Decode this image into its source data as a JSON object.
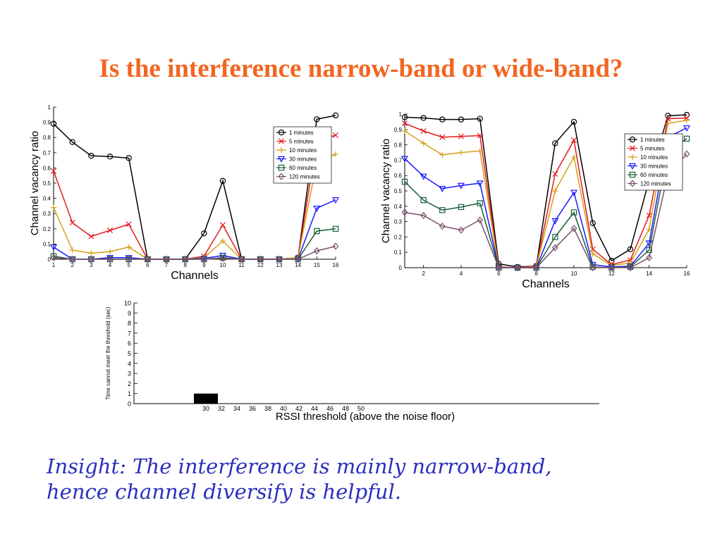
{
  "slide": {
    "title": "Is the interference narrow-band or wide-band?",
    "insight_line1": "Insight: The interference is mainly narrow-band,",
    "insight_line2": "hence channel diversify is helpful."
  },
  "colors": {
    "title": "#f26522",
    "insight": "#2b2fbd",
    "series": [
      "#000000",
      "#e31a1c",
      "#d4a017",
      "#1a1aff",
      "#1b5e3b",
      "#7b4f6e"
    ]
  },
  "chart_data": [
    {
      "type": "line",
      "xlabel": "Channels",
      "ylabel": "Channel vacancy ratio",
      "xlim": [
        1,
        16
      ],
      "ylim": [
        0,
        1
      ],
      "xticks": [
        "1",
        "2",
        "3",
        "4",
        "5",
        "6",
        "7",
        "8",
        "9",
        "10",
        "11",
        "12",
        "13",
        "14",
        "15",
        "16"
      ],
      "yticks": [
        "0",
        "0.1",
        "0.2",
        "0.3",
        "0.4",
        "0.5",
        "0.6",
        "0.7",
        "0.8",
        "0.9",
        "1"
      ],
      "legend_position": "top-right",
      "x": [
        1,
        2,
        3,
        4,
        5,
        6,
        7,
        8,
        9,
        10,
        11,
        12,
        13,
        14,
        15,
        16
      ],
      "series": [
        {
          "name": "1 minutes",
          "marker": "circle",
          "values": [
            0.89,
            0.77,
            0.68,
            0.675,
            0.665,
            0,
            0,
            0,
            0.17,
            0.515,
            0,
            0,
            0,
            0.01,
            0.92,
            0.945
          ]
        },
        {
          "name": "5 minutes",
          "marker": "x",
          "values": [
            0.58,
            0.24,
            0.15,
            0.19,
            0.23,
            0,
            0,
            0,
            0.02,
            0.225,
            0,
            0,
            0,
            0.01,
            0.78,
            0.815
          ]
        },
        {
          "name": "10 minutes",
          "marker": "plus",
          "values": [
            0.34,
            0.06,
            0.04,
            0.05,
            0.08,
            0,
            0,
            0,
            0.01,
            0.12,
            0,
            0,
            0,
            0.01,
            0.64,
            0.69
          ]
        },
        {
          "name": "30 minutes",
          "marker": "triangle",
          "values": [
            0.08,
            0,
            0,
            0.01,
            0.01,
            0,
            0,
            0,
            0.005,
            0.025,
            0,
            0,
            0,
            0,
            0.335,
            0.39
          ]
        },
        {
          "name": "60 minutes",
          "marker": "square",
          "values": [
            0.02,
            0,
            0,
            0,
            0,
            0,
            0,
            0,
            0,
            0.01,
            0,
            0,
            0,
            0,
            0.185,
            0.2
          ]
        },
        {
          "name": "120 minutes",
          "marker": "diamond",
          "values": [
            0.01,
            0,
            0,
            0,
            0,
            0,
            0,
            0,
            0,
            0.005,
            0,
            0,
            0,
            0,
            0.055,
            0.085
          ]
        }
      ]
    },
    {
      "type": "line",
      "xlabel": "Channels",
      "ylabel": "Channel vacancy ratio",
      "xlim": [
        1,
        16
      ],
      "ylim": [
        0,
        1
      ],
      "xticks": [
        "2",
        "4",
        "6",
        "8",
        "10",
        "12",
        "14",
        "16"
      ],
      "yticks": [
        "0",
        "0.1",
        "0.2",
        "0.3",
        "0.4",
        "0.5",
        "0.6",
        "0.7",
        "0.8",
        "0.9",
        "1"
      ],
      "legend_position": "top-right",
      "x": [
        1,
        2,
        3,
        4,
        5,
        6,
        7,
        8,
        9,
        10,
        11,
        12,
        13,
        14,
        15,
        16
      ],
      "series": [
        {
          "name": "1 minutes",
          "marker": "circle",
          "values": [
            0.98,
            0.975,
            0.965,
            0.965,
            0.97,
            0.025,
            0.005,
            0.01,
            0.81,
            0.95,
            0.29,
            0.045,
            0.12,
            0.57,
            0.99,
            0.995
          ]
        },
        {
          "name": "5 minutes",
          "marker": "x",
          "values": [
            0.94,
            0.89,
            0.85,
            0.855,
            0.86,
            0.005,
            0,
            0.01,
            0.61,
            0.83,
            0.12,
            0.02,
            0.05,
            0.34,
            0.97,
            0.975
          ]
        },
        {
          "name": "10 minutes",
          "marker": "plus",
          "values": [
            0.89,
            0.81,
            0.735,
            0.75,
            0.76,
            0,
            0,
            0.005,
            0.5,
            0.72,
            0.09,
            0.015,
            0.03,
            0.25,
            0.94,
            0.96
          ]
        },
        {
          "name": "30 minutes",
          "marker": "triangle",
          "values": [
            0.71,
            0.595,
            0.515,
            0.535,
            0.55,
            0,
            0,
            0,
            0.305,
            0.49,
            0.02,
            0.005,
            0.01,
            0.16,
            0.85,
            0.91
          ]
        },
        {
          "name": "60 minutes",
          "marker": "square",
          "values": [
            0.56,
            0.44,
            0.375,
            0.395,
            0.42,
            0,
            0,
            0,
            0.2,
            0.36,
            0.005,
            0,
            0.005,
            0.115,
            0.76,
            0.84
          ]
        },
        {
          "name": "120 minutes",
          "marker": "diamond",
          "values": [
            0.36,
            0.34,
            0.27,
            0.245,
            0.31,
            0,
            0,
            0,
            0.13,
            0.255,
            0,
            0,
            0,
            0.065,
            0.61,
            0.74
          ]
        }
      ]
    },
    {
      "type": "bar",
      "xlabel": "RSSI threshold (above the noise floor)",
      "ylabel": "Time cannot meet the threshold (sec)",
      "ylim": [
        0,
        10
      ],
      "yticks": [
        "0",
        "1",
        "2",
        "3",
        "4",
        "5",
        "6",
        "7",
        "8",
        "9",
        "10"
      ],
      "categories": [
        "30",
        "32",
        "34",
        "36",
        "38",
        "40",
        "42",
        "44",
        "46",
        "48",
        "50"
      ],
      "values": [
        1,
        0,
        0,
        0,
        0,
        0,
        0,
        0,
        0,
        0,
        0
      ]
    }
  ]
}
